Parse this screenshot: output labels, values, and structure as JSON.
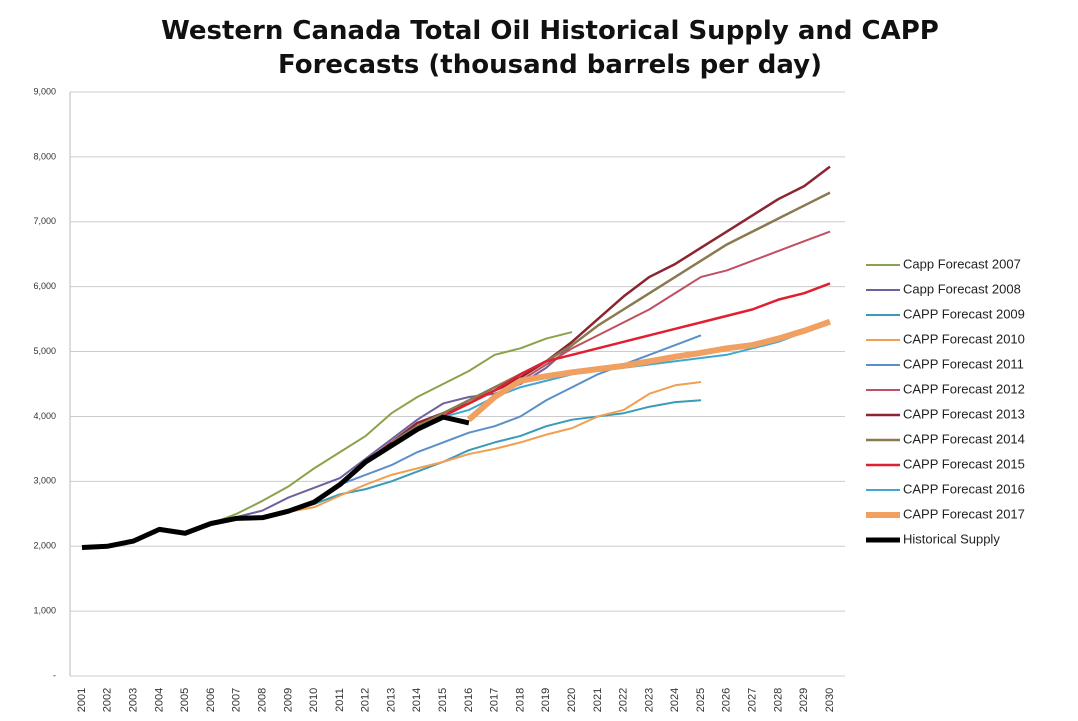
{
  "chart_data": {
    "type": "line",
    "title": "Western Canada Total Oil Historical Supply and CAPP Forecasts (thousand barrels per day)",
    "categories": [
      "2001",
      "2002",
      "2003",
      "2004",
      "2005",
      "2006",
      "2007",
      "2008",
      "2009",
      "2010",
      "2011",
      "2012",
      "2013",
      "2014",
      "2015",
      "2016",
      "2017",
      "2018",
      "2019",
      "2020",
      "2021",
      "2022",
      "2023",
      "2024",
      "2025",
      "2026",
      "2027",
      "2028",
      "2029",
      "2030"
    ],
    "ylim": [
      0,
      9000
    ],
    "yticks": [
      {
        "value": 0,
        "label": "-"
      },
      {
        "value": 1000,
        "label": "1,000"
      },
      {
        "value": 2000,
        "label": "2,000"
      },
      {
        "value": 3000,
        "label": "3,000"
      },
      {
        "value": 4000,
        "label": "4,000"
      },
      {
        "value": 5000,
        "label": "5,000"
      },
      {
        "value": 6000,
        "label": "6,000"
      },
      {
        "value": 7000,
        "label": "7,000"
      },
      {
        "value": 8000,
        "label": "8,000"
      },
      {
        "value": 9000,
        "label": "9,000"
      }
    ],
    "grid": true,
    "legend": "right",
    "series": [
      {
        "name": "Capp Forecast 2007",
        "color": "#8aa34a",
        "width": 2,
        "values": [
          null,
          null,
          null,
          null,
          null,
          2350,
          2500,
          2700,
          2920,
          3200,
          3450,
          3700,
          4050,
          4300,
          4500,
          4700,
          4950,
          5050,
          5200,
          5300,
          null,
          null,
          null,
          null,
          null,
          null,
          null,
          null,
          null,
          null
        ]
      },
      {
        "name": "Capp Forecast 2008",
        "color": "#7060a0",
        "width": 2,
        "values": [
          null,
          null,
          null,
          null,
          null,
          null,
          2450,
          2550,
          2750,
          2900,
          3050,
          3350,
          3650,
          3950,
          4200,
          4300,
          4350,
          4500,
          4750,
          5100,
          null,
          null,
          null,
          null,
          null,
          null,
          null,
          null,
          null,
          null
        ]
      },
      {
        "name": "CAPP Forecast 2009",
        "color": "#3a9bb8",
        "width": 2,
        "values": [
          null,
          null,
          null,
          null,
          null,
          null,
          null,
          2450,
          2550,
          2650,
          2800,
          2880,
          3000,
          3150,
          3300,
          3480,
          3600,
          3700,
          3850,
          3950,
          4000,
          4050,
          4150,
          4220,
          4250,
          null,
          null,
          null,
          null,
          null
        ]
      },
      {
        "name": "CAPP Forecast 2010",
        "color": "#f0a050",
        "width": 2,
        "values": [
          null,
          null,
          null,
          null,
          null,
          null,
          null,
          null,
          2530,
          2600,
          2780,
          2950,
          3100,
          3200,
          3300,
          3420,
          3500,
          3600,
          3720,
          3820,
          4000,
          4100,
          4350,
          4480,
          4530,
          null,
          null,
          null,
          null,
          null
        ]
      },
      {
        "name": "CAPP Forecast 2011",
        "color": "#5a8fc8",
        "width": 2,
        "values": [
          null,
          null,
          null,
          null,
          null,
          null,
          null,
          null,
          null,
          2700,
          2950,
          3100,
          3250,
          3450,
          3600,
          3750,
          3850,
          4000,
          4250,
          4450,
          4650,
          4800,
          4950,
          5100,
          5250,
          null,
          null,
          null,
          null,
          null
        ]
      },
      {
        "name": "CAPP Forecast 2012",
        "color": "#c05060",
        "width": 2,
        "values": [
          null,
          null,
          null,
          null,
          null,
          null,
          null,
          null,
          null,
          null,
          2950,
          3300,
          3600,
          3850,
          4050,
          4250,
          4400,
          4550,
          4800,
          5050,
          5250,
          5450,
          5650,
          5900,
          6150,
          6250,
          6400,
          6550,
          6700,
          6850
        ]
      },
      {
        "name": "CAPP Forecast 2013",
        "color": "#8b2530",
        "width": 2.5,
        "values": [
          null,
          null,
          null,
          null,
          null,
          null,
          null,
          null,
          null,
          null,
          null,
          3300,
          3600,
          3900,
          4050,
          4200,
          4400,
          4600,
          4850,
          5150,
          5500,
          5850,
          6150,
          6350,
          6600,
          6850,
          7100,
          7350,
          7550,
          7850
        ]
      },
      {
        "name": "CAPP Forecast 2014",
        "color": "#8a7a50",
        "width": 2.5,
        "values": [
          null,
          null,
          null,
          null,
          null,
          null,
          null,
          null,
          null,
          null,
          null,
          null,
          3600,
          3850,
          4050,
          4250,
          4450,
          4650,
          4850,
          5100,
          5400,
          5650,
          5900,
          6150,
          6400,
          6650,
          6850,
          7050,
          7250,
          7450
        ]
      },
      {
        "name": "CAPP Forecast 2015",
        "color": "#e02030",
        "width": 2.5,
        "values": [
          null,
          null,
          null,
          null,
          null,
          null,
          null,
          null,
          null,
          null,
          null,
          null,
          null,
          3800,
          4000,
          4200,
          4400,
          4650,
          4850,
          4950,
          5050,
          5150,
          5250,
          5350,
          5450,
          5550,
          5650,
          5800,
          5900,
          6050
        ]
      },
      {
        "name": "CAPP Forecast 2016",
        "color": "#40a8d0",
        "width": 2,
        "values": [
          null,
          null,
          null,
          null,
          null,
          null,
          null,
          null,
          null,
          null,
          null,
          null,
          null,
          null,
          3990,
          4100,
          4300,
          4450,
          4550,
          4650,
          4700,
          4750,
          4800,
          4850,
          4900,
          4950,
          5050,
          5150,
          5300,
          5450
        ]
      },
      {
        "name": "CAPP Forecast 2017",
        "color": "#f0a060",
        "width": 6,
        "values": [
          null,
          null,
          null,
          null,
          null,
          null,
          null,
          null,
          null,
          null,
          null,
          null,
          null,
          null,
          null,
          3950,
          4300,
          4550,
          4620,
          4680,
          4730,
          4780,
          4850,
          4920,
          4980,
          5050,
          5100,
          5200,
          5320,
          5460
        ]
      },
      {
        "name": "Historical Supply",
        "color": "#000000",
        "width": 5,
        "values": [
          1980,
          2000,
          2080,
          2260,
          2200,
          2350,
          2430,
          2440,
          2540,
          2680,
          2950,
          3300,
          3550,
          3800,
          3990,
          3900,
          null,
          null,
          null,
          null,
          null,
          null,
          null,
          null,
          null,
          null,
          null,
          null,
          null,
          null
        ]
      }
    ]
  }
}
